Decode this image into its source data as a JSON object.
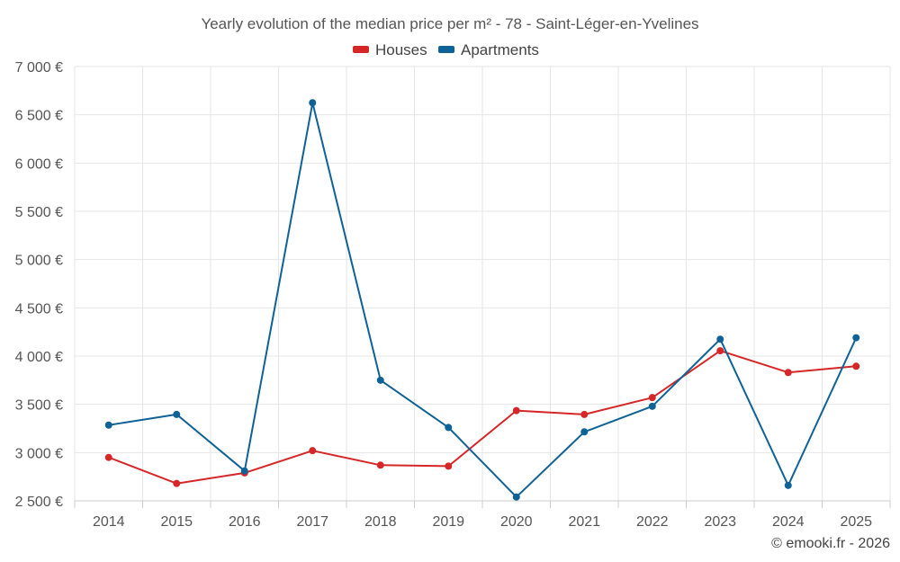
{
  "chart_data": {
    "type": "line",
    "title": "Yearly evolution of the median price per m² - 78 - Saint-Léger-en-Yvelines",
    "categories": [
      "2014",
      "2015",
      "2016",
      "2017",
      "2018",
      "2019",
      "2020",
      "2021",
      "2022",
      "2023",
      "2024",
      "2025"
    ],
    "series": [
      {
        "name": "Houses",
        "color": "#d62728",
        "values": [
          2950,
          2680,
          2790,
          3020,
          2870,
          2860,
          3435,
          3395,
          3570,
          4055,
          3830,
          3895
        ]
      },
      {
        "name": "Apartments",
        "color": "#0f6296",
        "values": [
          3285,
          3395,
          2810,
          6625,
          3750,
          3260,
          2540,
          3215,
          3480,
          4175,
          2660,
          4190
        ]
      }
    ],
    "ylim": [
      2500,
      7000
    ],
    "yticks": [
      2500,
      3000,
      3500,
      4000,
      4500,
      5000,
      5500,
      6000,
      6500,
      7000
    ],
    "ytick_labels": [
      "2 500 €",
      "3 000 €",
      "3 500 €",
      "4 000 €",
      "4 500 €",
      "5 000 €",
      "5 500 €",
      "6 000 €",
      "6 500 €",
      "7 000 €"
    ],
    "xlabel": "",
    "ylabel": "",
    "grid": true,
    "legend": "top-center"
  },
  "credit": "© emooki.fr - 2026"
}
